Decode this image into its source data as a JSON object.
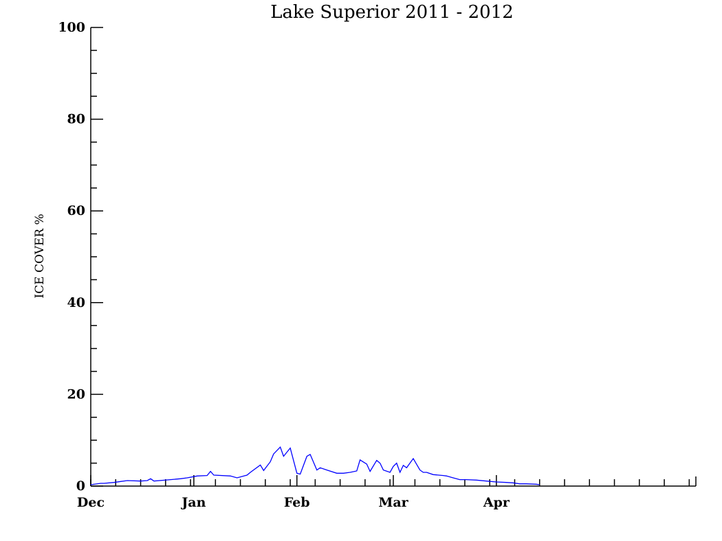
{
  "chart_data": {
    "type": "line",
    "title": "Lake Superior   2011 - 2012",
    "xlabel": "",
    "ylabel": "ICE COVER %",
    "ylim": [
      0,
      100
    ],
    "yticks": [
      0,
      20,
      40,
      60,
      80,
      100
    ],
    "yticks_minor_step": 5,
    "x_unit": "date",
    "xlim": [
      "2011-12-01",
      "2012-05-31"
    ],
    "xticks": [
      {
        "label": "Dec",
        "date": "2011-12-01"
      },
      {
        "label": "Jan",
        "date": "2012-01-01"
      },
      {
        "label": "Feb",
        "date": "2012-02-01"
      },
      {
        "label": "Mar",
        "date": "2012-03-01"
      },
      {
        "label": "Apr",
        "date": "2012-04-01"
      }
    ],
    "grid": false,
    "line_color": "#0000ff",
    "series": [
      {
        "x": [
          "2011-12-01",
          "2011-12-04",
          "2011-12-05",
          "2011-12-08",
          "2011-12-10",
          "2011-12-12",
          "2011-12-16",
          "2011-12-18",
          "2011-12-19",
          "2011-12-20",
          "2011-12-25",
          "2011-12-28",
          "2011-12-30",
          "2012-01-02",
          "2012-01-05",
          "2012-01-06",
          "2012-01-07",
          "2012-01-12",
          "2012-01-14",
          "2012-01-17",
          "2012-01-18",
          "2012-01-21",
          "2012-01-22",
          "2012-01-24",
          "2012-01-25",
          "2012-01-27",
          "2012-01-28",
          "2012-01-30",
          "2012-02-01",
          "2012-02-02",
          "2012-02-04",
          "2012-02-05",
          "2012-02-07",
          "2012-02-08",
          "2012-02-10",
          "2012-02-13",
          "2012-02-15",
          "2012-02-17",
          "2012-02-19",
          "2012-02-20",
          "2012-02-22",
          "2012-02-23",
          "2012-02-25",
          "2012-02-26",
          "2012-02-27",
          "2012-02-29",
          "2012-03-01",
          "2012-03-02",
          "2012-03-03",
          "2012-03-04",
          "2012-03-05",
          "2012-03-07",
          "2012-03-09",
          "2012-03-10",
          "2012-03-11",
          "2012-03-13",
          "2012-03-16",
          "2012-03-17",
          "2012-03-19",
          "2012-03-21",
          "2012-03-23",
          "2012-03-26",
          "2012-03-29",
          "2012-04-01",
          "2012-04-04",
          "2012-04-06",
          "2012-04-08",
          "2012-04-10",
          "2012-04-13",
          "2012-04-14"
        ],
        "y": [
          0.3,
          0.6,
          0.6,
          0.8,
          1.0,
          1.2,
          1.1,
          1.2,
          1.6,
          1.1,
          1.4,
          1.6,
          1.8,
          2.2,
          2.3,
          3.2,
          2.4,
          2.2,
          1.8,
          2.4,
          3.0,
          4.6,
          3.4,
          5.3,
          7.0,
          8.5,
          6.5,
          8.3,
          2.8,
          2.6,
          6.5,
          6.9,
          3.5,
          4.0,
          3.5,
          2.8,
          2.8,
          3.0,
          3.3,
          5.7,
          4.8,
          3.2,
          5.6,
          5.0,
          3.5,
          3.0,
          4.3,
          5.0,
          3.0,
          4.5,
          4.0,
          6.0,
          3.5,
          3.0,
          3.0,
          2.5,
          2.3,
          2.2,
          1.8,
          1.4,
          1.4,
          1.3,
          1.1,
          0.9,
          0.8,
          0.7,
          0.5,
          0.5,
          0.4,
          0.3
        ]
      }
    ]
  }
}
